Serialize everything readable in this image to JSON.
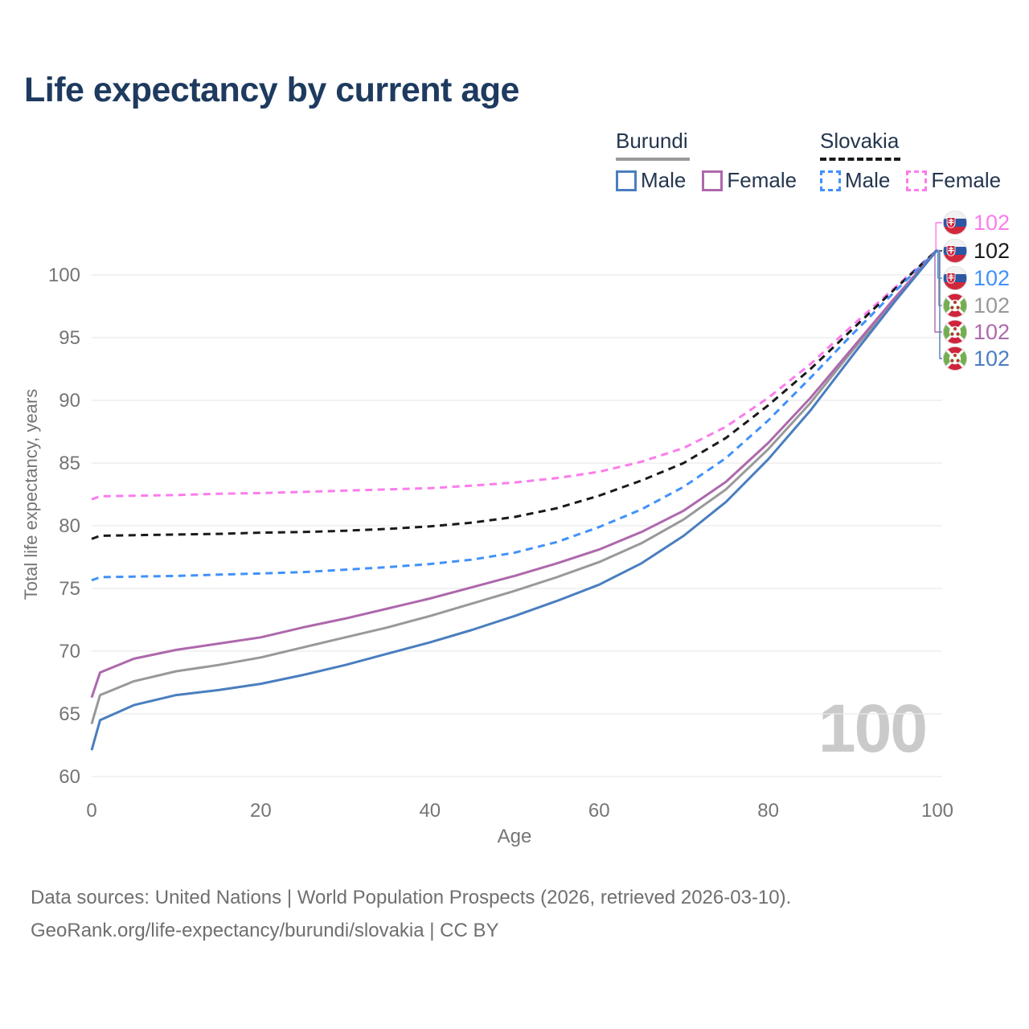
{
  "title": "Life expectancy by current age",
  "watermark": "100",
  "legend": {
    "groups": [
      {
        "country": "Burundi",
        "line_style": "solid",
        "underline_color": "#9a9a9a",
        "items": [
          {
            "label": "Male",
            "color": "#4a7ebf",
            "dashed": false
          },
          {
            "label": "Female",
            "color": "#ae68ac",
            "dashed": false
          }
        ]
      },
      {
        "country": "Slovakia",
        "line_style": "dashed",
        "underline_color": "#1a1a1a",
        "items": [
          {
            "label": "Male",
            "color": "#4191fb",
            "dashed": true
          },
          {
            "label": "Female",
            "color": "#fb7cec",
            "dashed": true
          }
        ]
      }
    ]
  },
  "footer": {
    "line1": "Data sources: United Nations | World Population Prospects (2026, retrieved 2026-03-10).",
    "line2": "GeoRank.org/life-expectancy/burundi/slovakia | CC BY"
  },
  "chart_data": {
    "type": "line",
    "title": "Life expectancy by current age",
    "xlabel": "Age",
    "ylabel": "Total life expectancy, years",
    "x_ticks": [
      0,
      20,
      40,
      60,
      80,
      100
    ],
    "y_ticks": [
      60,
      65,
      70,
      75,
      80,
      85,
      90,
      95,
      100
    ],
    "xlim": [
      0,
      100
    ],
    "ylim": [
      60,
      103
    ],
    "grid": "horizontal",
    "grid_color": "#e9e9e9",
    "axis_text_color": "#757575",
    "watermark_color": "#cacaca",
    "current_age_frame": "100",
    "x": [
      0,
      1,
      5,
      10,
      15,
      20,
      25,
      30,
      35,
      40,
      45,
      50,
      55,
      60,
      65,
      70,
      75,
      80,
      85,
      90,
      95,
      100
    ],
    "series": [
      {
        "id": "slovakia-female",
        "name": "Slovakia Female",
        "country": "Slovakia",
        "sex": "female",
        "color": "#fb7cec",
        "dashed": true,
        "flag": "slovakia",
        "end_label": "102",
        "values": [
          82.1,
          82.35,
          82.4,
          82.45,
          82.55,
          82.6,
          82.7,
          82.8,
          82.9,
          83.0,
          83.2,
          83.45,
          83.8,
          84.3,
          85.1,
          86.2,
          87.9,
          90.2,
          92.9,
          96.0,
          99.0,
          102
        ]
      },
      {
        "id": "slovakia-all",
        "name": "Slovakia",
        "country": "Slovakia",
        "sex": "all",
        "color": "#1a1a1a",
        "dashed": true,
        "flag": "slovakia",
        "end_label": "102",
        "values": [
          78.95,
          79.2,
          79.25,
          79.3,
          79.35,
          79.45,
          79.5,
          79.6,
          79.75,
          79.95,
          80.25,
          80.7,
          81.4,
          82.4,
          83.6,
          85.0,
          87.0,
          89.6,
          92.5,
          95.7,
          98.9,
          102
        ]
      },
      {
        "id": "slovakia-male",
        "name": "Slovakia Male",
        "country": "Slovakia",
        "sex": "male",
        "color": "#4191fb",
        "dashed": true,
        "flag": "slovakia",
        "end_label": "102",
        "values": [
          75.65,
          75.9,
          75.95,
          76.0,
          76.1,
          76.2,
          76.3,
          76.5,
          76.7,
          76.95,
          77.3,
          77.85,
          78.7,
          79.9,
          81.3,
          83.1,
          85.4,
          88.4,
          91.8,
          95.3,
          98.7,
          102
        ]
      },
      {
        "id": "burundi-all",
        "name": "Burundi",
        "country": "Burundi",
        "sex": "all",
        "color": "#999999",
        "dashed": false,
        "flag": "burundi",
        "end_label": "102",
        "values": [
          64.2,
          66.5,
          67.6,
          68.4,
          68.9,
          69.5,
          70.3,
          71.1,
          71.9,
          72.8,
          73.8,
          74.8,
          75.9,
          77.1,
          78.6,
          80.5,
          82.9,
          86.1,
          89.8,
          94.0,
          98.0,
          102
        ]
      },
      {
        "id": "burundi-female",
        "name": "Burundi Female",
        "country": "Burundi",
        "sex": "female",
        "color": "#ae68ac",
        "dashed": false,
        "flag": "burundi",
        "end_label": "102",
        "values": [
          66.3,
          68.3,
          69.4,
          70.1,
          70.6,
          71.1,
          71.9,
          72.6,
          73.4,
          74.2,
          75.1,
          76.0,
          77.0,
          78.1,
          79.5,
          81.2,
          83.5,
          86.6,
          90.2,
          94.2,
          98.2,
          102
        ]
      },
      {
        "id": "burundi-male",
        "name": "Burundi Male",
        "country": "Burundi",
        "sex": "male",
        "color": "#4a7ebf",
        "dashed": false,
        "flag": "burundi",
        "end_label": "102",
        "values": [
          62.1,
          64.5,
          65.7,
          66.5,
          66.9,
          67.4,
          68.1,
          68.9,
          69.8,
          70.7,
          71.7,
          72.8,
          74.0,
          75.3,
          77.0,
          79.2,
          81.9,
          85.3,
          89.2,
          93.6,
          97.9,
          102
        ]
      }
    ],
    "legend_position": "top-right",
    "flags": {
      "slovakia": {
        "white": "#f2f2f2",
        "blue": "#2b57a5",
        "red": "#d2283c"
      },
      "burundi": {
        "red": "#d0243c",
        "green": "#73ae51",
        "white": "#ffffff"
      }
    }
  }
}
